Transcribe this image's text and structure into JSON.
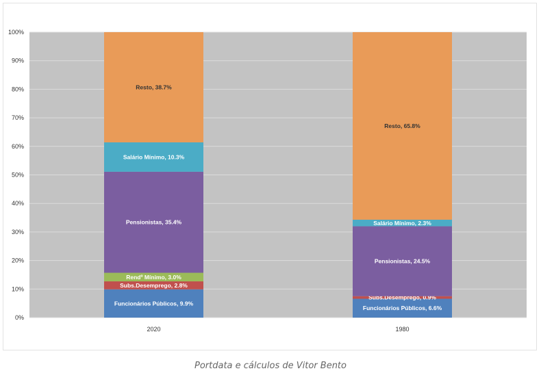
{
  "caption": "Portdata e cálculos de Vitor Bento",
  "chart_data": {
    "type": "bar",
    "stacked": true,
    "title": "",
    "xlabel": "",
    "ylabel": "",
    "ylim": [
      0,
      100
    ],
    "y_ticks": [
      "0%",
      "10%",
      "20%",
      "30%",
      "40%",
      "50%",
      "60%",
      "70%",
      "80%",
      "90%",
      "100%"
    ],
    "grid": true,
    "categories": [
      "2020",
      "1980"
    ],
    "series": [
      {
        "name": "Funcionários Públicos",
        "color": "#4F81BD",
        "values": [
          9.9,
          6.6
        ]
      },
      {
        "name": "Subs.Desemprego",
        "color": "#C0504D",
        "values": [
          2.8,
          0.9
        ]
      },
      {
        "name": "Rendº Mínimo",
        "color": "#9BBB59",
        "values": [
          3.0,
          0
        ]
      },
      {
        "name": "Pensionistas",
        "color": "#7B5EA0",
        "values": [
          35.4,
          24.5
        ]
      },
      {
        "name": "Salário Mínimo",
        "color": "#4BACC6",
        "values": [
          10.3,
          2.3
        ]
      },
      {
        "name": "Resto",
        "color": "#E99B58",
        "values": [
          38.7,
          65.8
        ]
      }
    ],
    "data_labels": [
      [
        "Funcionários Públicos, 9.9%",
        "Subs.Desemprego, 2.8%",
        "Rendº Mínimo, 3.0%",
        "Pensionistas, 35.4%",
        "Salário Mínimo, 10.3%",
        "Resto, 38.7%"
      ],
      [
        "Funcionários Públicos, 6.6%",
        "Subs.Desemprego, 0.9%",
        "",
        "Pensionistas, 24.5%",
        "Salário Mínimo, 2.3%",
        "Resto, 65.8%"
      ]
    ]
  }
}
